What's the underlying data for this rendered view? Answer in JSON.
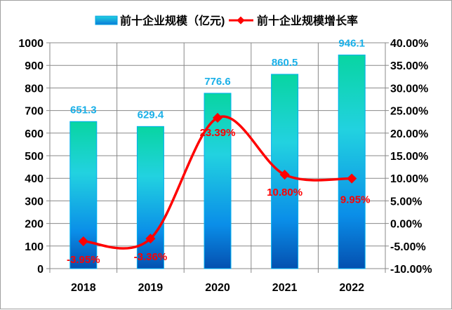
{
  "chart_data": {
    "type": "bar+line",
    "categories": [
      "2018",
      "2019",
      "2020",
      "2021",
      "2022"
    ],
    "series": [
      {
        "name": "前十企业规模（亿元)",
        "type": "bar",
        "axis": "left",
        "values": [
          651.3,
          629.4,
          776.6,
          860.5,
          946.1
        ],
        "labels": [
          "651.3",
          "629.4",
          "776.6",
          "860.5",
          "946.1"
        ],
        "color": "#00b0f0"
      },
      {
        "name": "前十企业规模增长率",
        "type": "line",
        "axis": "right",
        "values": [
          -3.95,
          -3.36,
          23.39,
          10.8,
          9.95
        ],
        "labels": [
          "-3.95%",
          "-3.36%",
          "23.39%",
          "10.80%",
          "9.95%"
        ],
        "color": "#ff0000"
      }
    ],
    "y_left": {
      "lim": [
        0,
        1000
      ],
      "ticks": [
        "0",
        "100",
        "200",
        "300",
        "400",
        "500",
        "600",
        "700",
        "800",
        "900",
        "1000"
      ]
    },
    "y_right": {
      "lim": [
        -10,
        40
      ],
      "ticks": [
        "-10.00%",
        "-5.00%",
        "0.00%",
        "5.00%",
        "10.00%",
        "15.00%",
        "20.00%",
        "25.00%",
        "30.00%",
        "35.00%",
        "40.00%"
      ]
    },
    "grid": true,
    "legend": "top"
  }
}
